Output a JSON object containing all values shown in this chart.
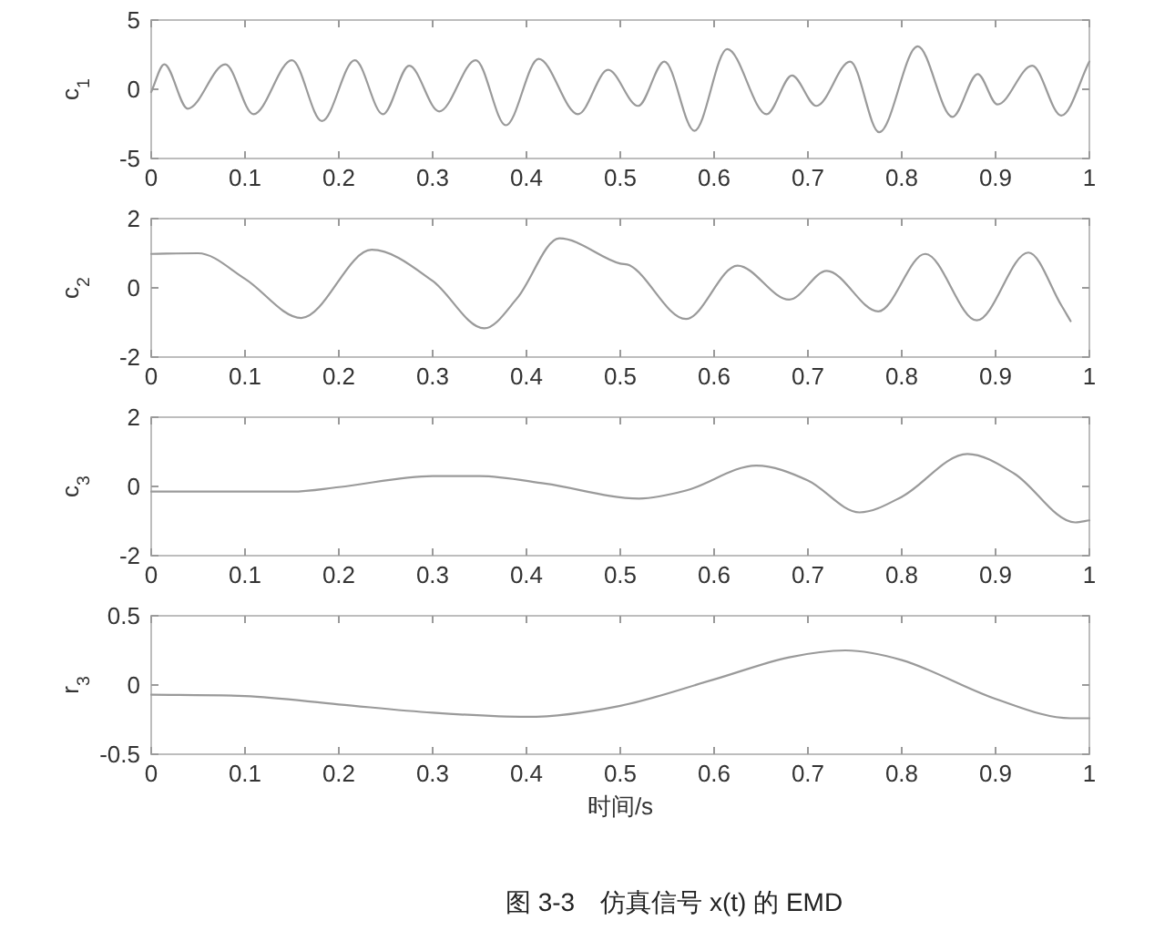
{
  "chart_data": [
    {
      "type": "line",
      "ylabel": "c$_{1}$",
      "xlim": [
        0,
        1
      ],
      "xticks": [
        0,
        0.1,
        0.2,
        0.3,
        0.4,
        0.5,
        0.6,
        0.7,
        0.8,
        0.9,
        1
      ],
      "ylim": [
        -5,
        5
      ],
      "yticks": [
        -5,
        0,
        5
      ],
      "color": "#9a9a9a",
      "x": [
        0,
        0.014,
        0.039,
        0.079,
        0.109,
        0.15,
        0.182,
        0.217,
        0.247,
        0.275,
        0.307,
        0.346,
        0.378,
        0.413,
        0.455,
        0.487,
        0.519,
        0.547,
        0.579,
        0.614,
        0.656,
        0.683,
        0.709,
        0.745,
        0.776,
        0.817,
        0.854,
        0.881,
        0.902,
        0.939,
        0.97,
        1
      ],
      "values": [
        -0.2,
        1.8,
        -1.4,
        1.8,
        -1.8,
        2.1,
        -2.3,
        2.1,
        -1.8,
        1.7,
        -1.6,
        2.1,
        -2.6,
        2.2,
        -1.8,
        1.4,
        -1.2,
        2.0,
        -3.0,
        2.9,
        -1.8,
        1.0,
        -1.2,
        2.0,
        -3.1,
        3.1,
        -2.0,
        1.1,
        -1.1,
        1.7,
        -1.9,
        2.0
      ]
    },
    {
      "type": "line",
      "ylabel": "c$_{2}$",
      "xlim": [
        0,
        1
      ],
      "xticks": [
        0,
        0.1,
        0.2,
        0.3,
        0.4,
        0.5,
        0.6,
        0.7,
        0.8,
        0.9,
        1
      ],
      "ylim": [
        -2,
        2
      ],
      "yticks": [
        -2,
        0,
        2
      ],
      "color": "#9a9a9a",
      "x": [
        0,
        0.05,
        0.1,
        0.16,
        0.235,
        0.3,
        0.355,
        0.39,
        0.435,
        0.5,
        0.51,
        0.57,
        0.625,
        0.68,
        0.72,
        0.775,
        0.825,
        0.88,
        0.935,
        0.97,
        0.98
      ],
      "values": [
        0.98,
        1.0,
        0.26,
        -0.87,
        1.1,
        0.2,
        -1.17,
        -0.3,
        1.43,
        0.7,
        0.65,
        -0.9,
        0.64,
        -0.34,
        0.49,
        -0.68,
        0.98,
        -0.94,
        1.02,
        -0.5,
        -0.96
      ]
    },
    {
      "type": "line",
      "ylabel": "c$_{3}$",
      "xlim": [
        0,
        1
      ],
      "xticks": [
        0,
        0.1,
        0.2,
        0.3,
        0.4,
        0.5,
        0.6,
        0.7,
        0.8,
        0.9,
        1
      ],
      "ylim": [
        -2,
        2
      ],
      "yticks": [
        -2,
        0,
        2
      ],
      "color": "#9a9a9a",
      "x": [
        0,
        0.15,
        0.2,
        0.3,
        0.35,
        0.42,
        0.52,
        0.57,
        0.645,
        0.7,
        0.755,
        0.8,
        0.87,
        0.92,
        0.985,
        1
      ],
      "values": [
        -0.15,
        -0.15,
        -0.02,
        0.3,
        0.3,
        0.08,
        -0.35,
        -0.12,
        0.6,
        0.17,
        -0.75,
        -0.3,
        0.94,
        0.37,
        -1.04,
        -0.98
      ]
    },
    {
      "type": "line",
      "ylabel": "r$_{3}$",
      "xlabel": "时间/s",
      "xlim": [
        0,
        1
      ],
      "xticks": [
        0,
        0.1,
        0.2,
        0.3,
        0.4,
        0.5,
        0.6,
        0.7,
        0.8,
        0.9,
        1
      ],
      "ylim": [
        -0.5,
        0.5
      ],
      "yticks": [
        -0.5,
        0,
        0.5
      ],
      "color": "#9a9a9a",
      "x": [
        0,
        0.1,
        0.2,
        0.3,
        0.4,
        0.5,
        0.6,
        0.68,
        0.74,
        0.8,
        0.9,
        0.98,
        1
      ],
      "values": [
        -0.07,
        -0.08,
        -0.14,
        -0.2,
        -0.23,
        -0.15,
        0.04,
        0.2,
        0.25,
        0.18,
        -0.1,
        -0.24,
        -0.24
      ],
      "annotations": [
        "图 3-3　仿真信号 x(t) 的 EMD"
      ]
    }
  ]
}
